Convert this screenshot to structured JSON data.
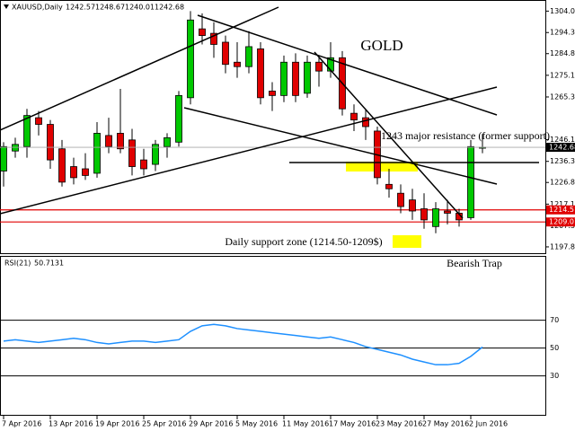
{
  "chart_data": {
    "type": "candlestick",
    "title": "XAUUSD,Daily",
    "up_color": "#00c800",
    "down_color": "#e00000",
    "categories": [
      "7 Apr 2016",
      null,
      null,
      null,
      "13 Apr 2016",
      null,
      null,
      null,
      "19 Apr 2016",
      null,
      null,
      null,
      "25 Apr 2016",
      null,
      null,
      null,
      "29 Apr 2016",
      null,
      null,
      null,
      "5 May 2016",
      null,
      null,
      null,
      "11 May 2016",
      null,
      null,
      null,
      "17 May 2016",
      null,
      null,
      null,
      "23 May 2016",
      null,
      null,
      null,
      "27 May 2016",
      null,
      null,
      null,
      "2 Jun 2016",
      null
    ],
    "open": [
      1232,
      1241,
      1243,
      1256,
      1253,
      1242,
      1234,
      1233,
      1231,
      1248,
      1249,
      1246,
      1237,
      1235,
      1243,
      1245,
      1265,
      1296,
      1294,
      1290,
      1281,
      1279,
      1287,
      1268,
      1266,
      1281,
      1267,
      1281,
      1277,
      1283,
      1258,
      1256,
      1250,
      1226,
      1222,
      1219,
      1215,
      1207,
      1214,
      1213,
      1211,
      1242.57
    ],
    "high": [
      1245,
      1247,
      1260,
      1259,
      1255,
      1246,
      1238,
      1240,
      1254,
      1256,
      1269,
      1251,
      1242,
      1246,
      1249,
      1268,
      1304,
      1303,
      1299,
      1293,
      1290,
      1295,
      1290,
      1272,
      1284,
      1285,
      1284,
      1284,
      1290,
      1286,
      1262,
      1260,
      1252,
      1233,
      1226,
      1224,
      1222,
      1218,
      1219,
      1215,
      1246,
      1248.67
    ],
    "low": [
      1225,
      1238,
      1238,
      1248,
      1233,
      1225,
      1226,
      1228,
      1229,
      1240,
      1240,
      1230,
      1230,
      1232,
      1238,
      1243,
      1262,
      1289,
      1283,
      1276,
      1274,
      1276,
      1262,
      1259,
      1263,
      1263,
      1265,
      1270,
      1274,
      1257,
      1250,
      1246,
      1226,
      1220,
      1213,
      1210,
      1206,
      1204,
      1208,
      1207,
      1210,
      1240.01
    ],
    "close": [
      1243,
      1244,
      1257,
      1253,
      1237,
      1227,
      1229,
      1230,
      1249,
      1243,
      1242,
      1234,
      1233,
      1244,
      1247,
      1266,
      1300,
      1293,
      1289,
      1280,
      1279,
      1288,
      1265,
      1266,
      1281,
      1266,
      1281,
      1277,
      1283,
      1260,
      1255,
      1252,
      1229,
      1224,
      1216,
      1214,
      1210,
      1215,
      1213,
      1210,
      1243,
      1242.68
    ],
    "ylim": [
      1195,
      1309
    ],
    "yticks": [
      {
        "value": 1304,
        "label": "1304.00"
      },
      1294.35,
      1284.85,
      {
        "value": 1275.1,
        "label": "1275.10"
      },
      1265.35,
      {
        "value": 1246.1,
        "label": "1246.10"
      },
      1236.35,
      1226.85,
      {
        "value": 1217.1,
        "label": "1217.10"
      },
      1207.35,
      1197.85
    ],
    "levels": [
      {
        "value": 1214.51,
        "color": "#e00000"
      },
      {
        "value": 1209.07,
        "color": "#e00000"
      }
    ],
    "annotations": [
      "GOLD",
      "1243 major resistance (former support)",
      "Daily support zone (1214.50-1209$)",
      "Bearish Trap"
    ],
    "rsi": {
      "name": "RSI(21)",
      "color": "#1e90ff",
      "values": [
        55,
        56,
        55,
        54,
        55,
        56,
        57,
        56,
        54,
        53,
        54,
        55,
        55,
        54,
        55,
        56,
        62,
        66,
        67,
        66,
        64,
        63,
        62,
        61,
        60,
        59,
        58,
        57,
        58,
        56,
        54,
        51,
        49,
        47,
        45,
        42,
        40,
        38,
        38,
        39,
        44,
        50.7131
      ],
      "ylim": [
        0,
        115
      ],
      "yticks": [
        30,
        50,
        70
      ]
    }
  }
}
